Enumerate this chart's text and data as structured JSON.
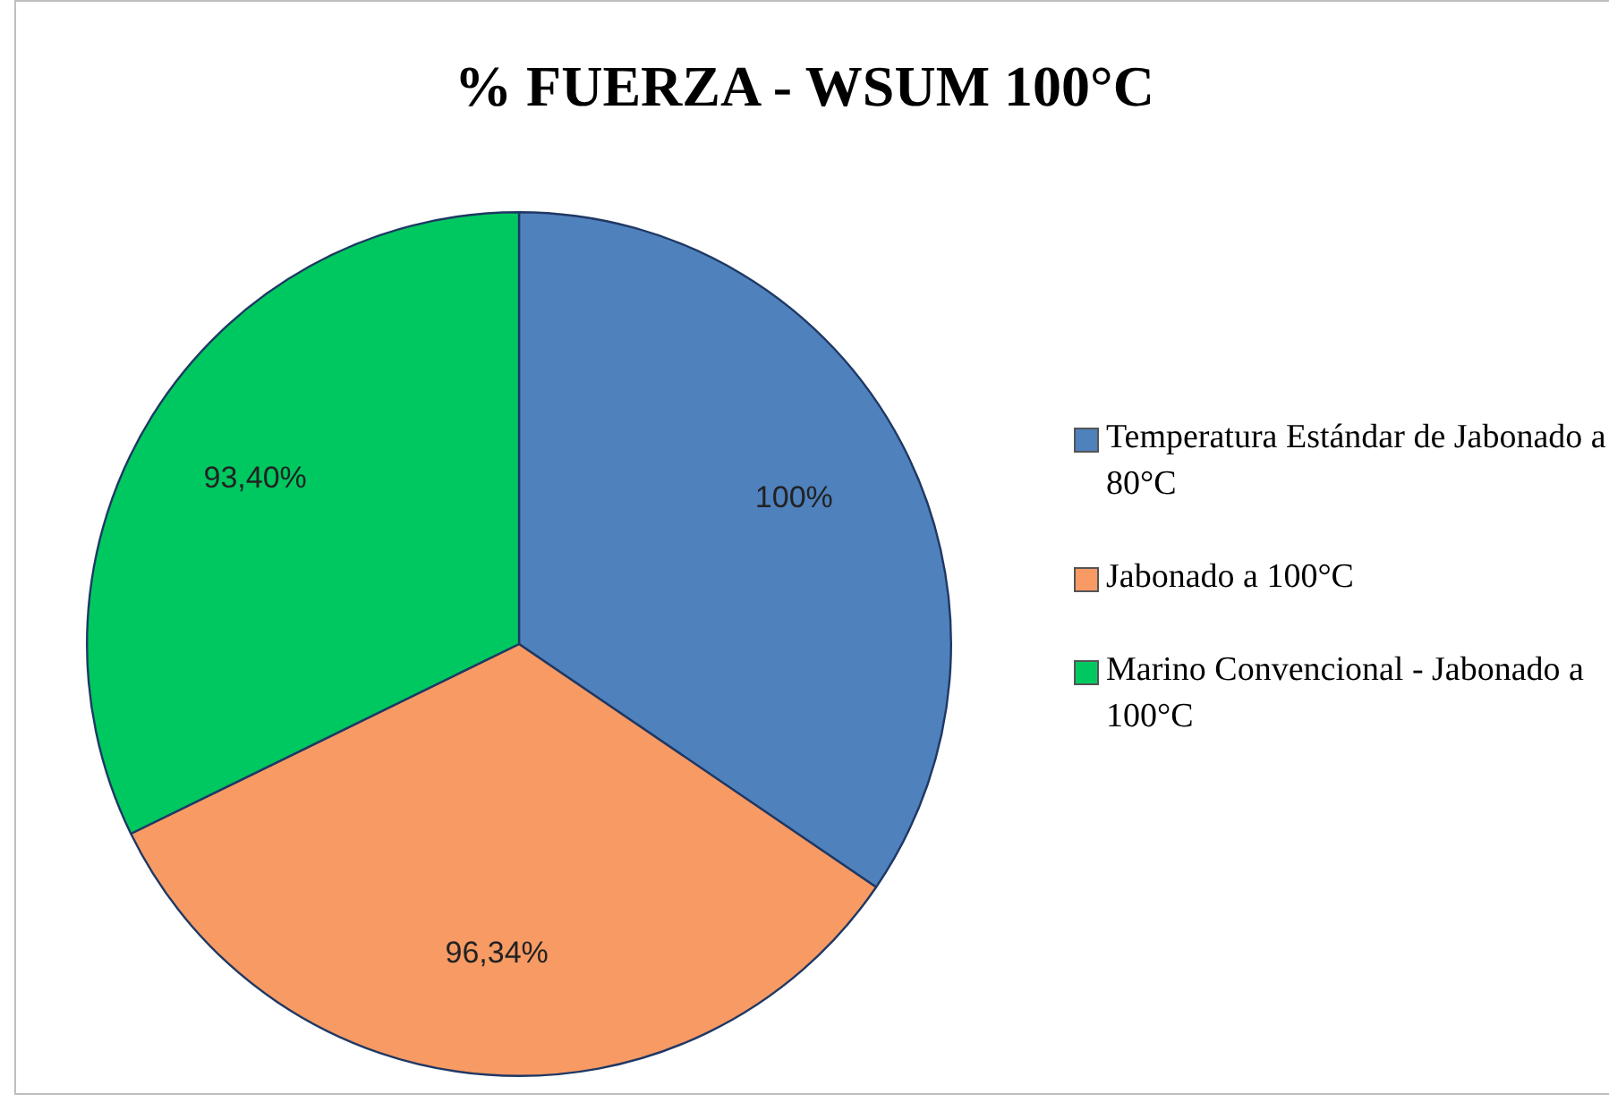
{
  "chart_data": {
    "type": "pie",
    "title": "% FUERZA - WSUM 100°C",
    "categories": [
      "Temperatura Estándar de Jabonado a 80°C",
      "Jabonado a 100°C",
      "Marino Convencional - Jabonado a 100°C"
    ],
    "values": [
      100,
      96.34,
      93.4
    ],
    "colors": [
      "#4f81bd",
      "#f79a64",
      "#00c860"
    ],
    "value_labels": [
      "100%",
      "96,34%",
      "93,40%"
    ],
    "legend": "right"
  }
}
